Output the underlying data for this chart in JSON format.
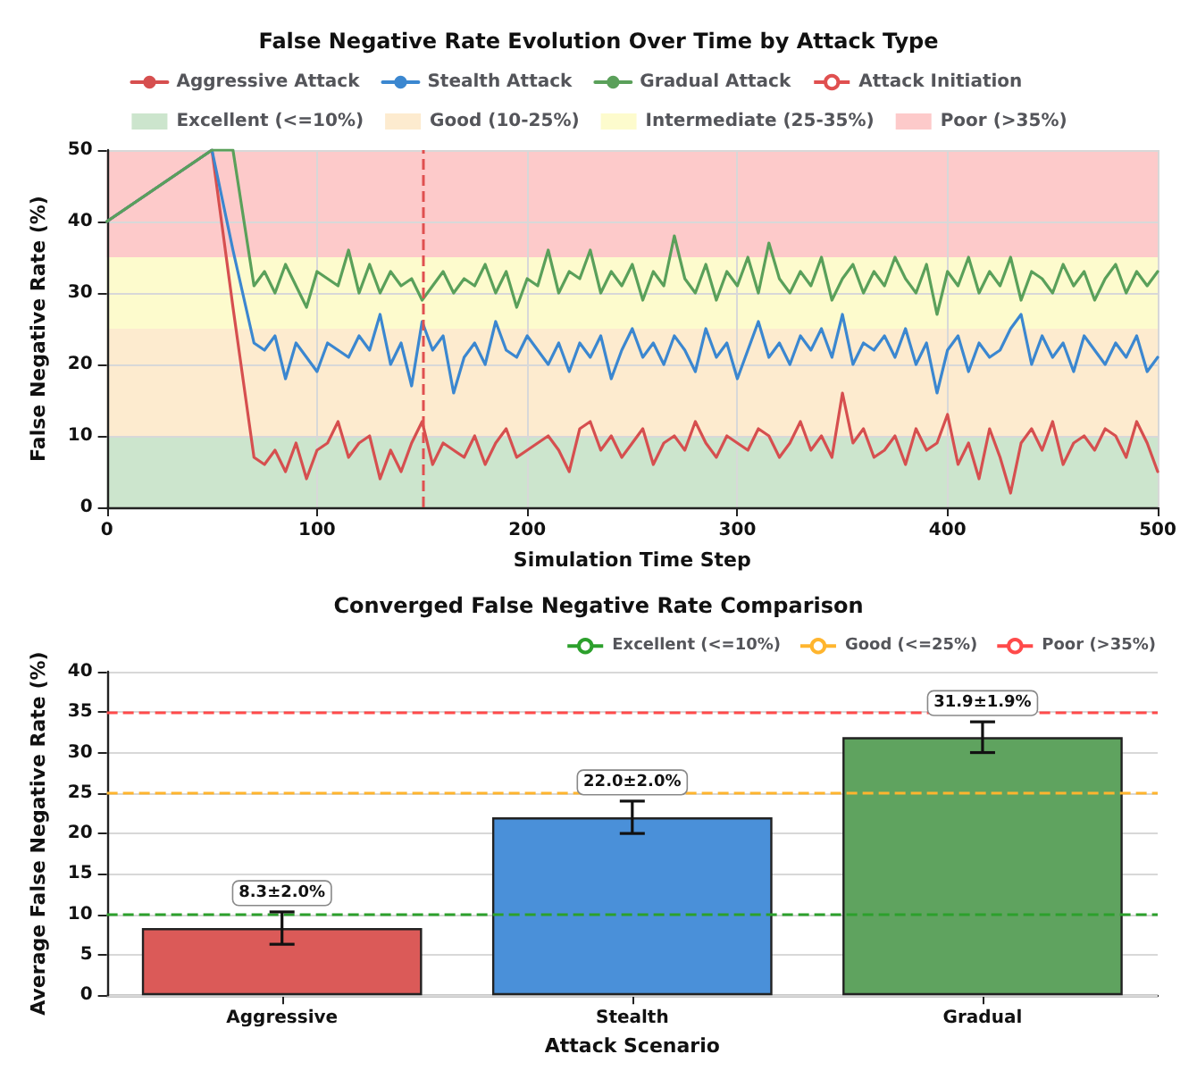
{
  "chart_data": [
    {
      "type": "line",
      "title": "False Negative Rate Evolution Over Time by Attack Type",
      "xlabel": "Simulation Time Step",
      "ylabel": "False Negative Rate (%)",
      "x": [
        0,
        50,
        60,
        70,
        75,
        80,
        85,
        90,
        95,
        100,
        105,
        110,
        115,
        120,
        125,
        130,
        135,
        140,
        145,
        150,
        155,
        160,
        165,
        170,
        175,
        180,
        185,
        190,
        195,
        200,
        205,
        210,
        215,
        220,
        225,
        230,
        235,
        240,
        245,
        250,
        255,
        260,
        265,
        270,
        275,
        280,
        285,
        290,
        295,
        300,
        305,
        310,
        315,
        320,
        325,
        330,
        335,
        340,
        345,
        350,
        355,
        360,
        365,
        370,
        375,
        380,
        385,
        390,
        395,
        400,
        405,
        410,
        415,
        420,
        425,
        430,
        435,
        440,
        445,
        450,
        455,
        460,
        465,
        470,
        475,
        480,
        485,
        490,
        495,
        500
      ],
      "series": [
        {
          "name": "Aggressive Attack",
          "color": "#d64f4f",
          "values": [
            40,
            50,
            28,
            7,
            6,
            8,
            5,
            9,
            4,
            8,
            9,
            12,
            7,
            9,
            10,
            4,
            8,
            5,
            9,
            12,
            6,
            9,
            8,
            7,
            10,
            6,
            9,
            11,
            7,
            8,
            9,
            10,
            8,
            5,
            11,
            12,
            8,
            10,
            7,
            9,
            11,
            6,
            9,
            10,
            8,
            12,
            9,
            7,
            10,
            9,
            8,
            11,
            10,
            7,
            9,
            12,
            8,
            10,
            7,
            16,
            9,
            11,
            7,
            8,
            10,
            6,
            11,
            8,
            9,
            13,
            6,
            9,
            4,
            11,
            7,
            2,
            9,
            11,
            8,
            12,
            6,
            9,
            10,
            8,
            11,
            10,
            7,
            12,
            9,
            5
          ]
        },
        {
          "name": "Stealth Attack",
          "color": "#3b87d0",
          "values": [
            40,
            50,
            36,
            23,
            22,
            24,
            18,
            23,
            21,
            19,
            23,
            22,
            21,
            24,
            22,
            27,
            20,
            23,
            17,
            26,
            22,
            24,
            16,
            21,
            23,
            20,
            26,
            22,
            21,
            24,
            22,
            20,
            23,
            19,
            23,
            21,
            24,
            18,
            22,
            25,
            21,
            23,
            20,
            24,
            22,
            19,
            25,
            21,
            23,
            18,
            22,
            26,
            21,
            23,
            20,
            24,
            22,
            25,
            21,
            27,
            20,
            23,
            22,
            24,
            21,
            25,
            20,
            23,
            16,
            22,
            24,
            19,
            23,
            21,
            22,
            25,
            27,
            20,
            24,
            21,
            23,
            19,
            24,
            22,
            20,
            23,
            21,
            24,
            19,
            21
          ]
        },
        {
          "name": "Gradual Attack",
          "color": "#5aa05a",
          "values": [
            40,
            50,
            50,
            31,
            33,
            30,
            34,
            31,
            28,
            33,
            32,
            31,
            36,
            30,
            34,
            30,
            33,
            31,
            32,
            29,
            31,
            33,
            30,
            32,
            31,
            34,
            30,
            33,
            28,
            32,
            31,
            36,
            30,
            33,
            32,
            36,
            30,
            33,
            31,
            34,
            29,
            33,
            31,
            38,
            32,
            30,
            34,
            29,
            33,
            31,
            35,
            30,
            37,
            32,
            30,
            33,
            31,
            35,
            29,
            32,
            34,
            30,
            33,
            31,
            35,
            32,
            30,
            34,
            27,
            33,
            31,
            35,
            30,
            33,
            31,
            35,
            29,
            33,
            32,
            30,
            34,
            31,
            33,
            29,
            32,
            34,
            30,
            33,
            31,
            33
          ]
        }
      ],
      "ref_lines": [
        {
          "axis": "x",
          "value": 150,
          "label": "Attack Initiation",
          "color": "#e05050",
          "line_style": "dashed"
        }
      ],
      "bands": [
        {
          "axis": "y",
          "from": 0,
          "to": 10,
          "label": "Excellent (<=10%)",
          "color": "#cce5cd"
        },
        {
          "axis": "y",
          "from": 10,
          "to": 25,
          "label": "Good (10-25%)",
          "color": "#fdebcf"
        },
        {
          "axis": "y",
          "from": 25,
          "to": 35,
          "label": "Intermediate (25-35%)",
          "color": "#fdfbcd"
        },
        {
          "axis": "y",
          "from": 35,
          "to": 50,
          "label": "Poor (>35%)",
          "color": "#fdcaca"
        }
      ],
      "xlim": [
        0,
        500
      ],
      "xticks": [
        0,
        100,
        200,
        300,
        400,
        500
      ],
      "ylim": [
        0,
        50
      ],
      "yticks": [
        0,
        10,
        20,
        30,
        40,
        50
      ],
      "grid": true,
      "legend": "top",
      "marker": "none",
      "line_style": "solid"
    },
    {
      "type": "bar",
      "title": "Converged False Negative Rate Comparison",
      "xlabel": "Attack Scenario",
      "ylabel": "Average False Negative Rate (%)",
      "categories": [
        "Aggressive",
        "Stealth",
        "Gradual"
      ],
      "values": [
        8.3,
        22.0,
        31.9
      ],
      "colors": [
        "#db5a58",
        "#4a90d9",
        "#5fa35f"
      ],
      "errors": [
        2.0,
        2.0,
        1.9
      ],
      "value_labels": [
        "8.3±2.0%",
        "22.0±2.0%",
        "31.9±1.9%"
      ],
      "ref_lines": [
        {
          "axis": "y",
          "value": 10,
          "label": "Excellent (<=10%)",
          "color": "#2ca02c",
          "line_style": "dashed"
        },
        {
          "axis": "y",
          "value": 25,
          "label": "Good (<=25%)",
          "color": "#ffb52e",
          "line_style": "dashed"
        },
        {
          "axis": "y",
          "value": 35,
          "label": "Poor (>35%)",
          "color": "#ff4a4a",
          "line_style": "dashed"
        }
      ],
      "ylim": [
        0,
        40
      ],
      "yticks": [
        0,
        5,
        10,
        15,
        20,
        25,
        30,
        35,
        40
      ],
      "grid": "y",
      "legend": "top right"
    }
  ]
}
